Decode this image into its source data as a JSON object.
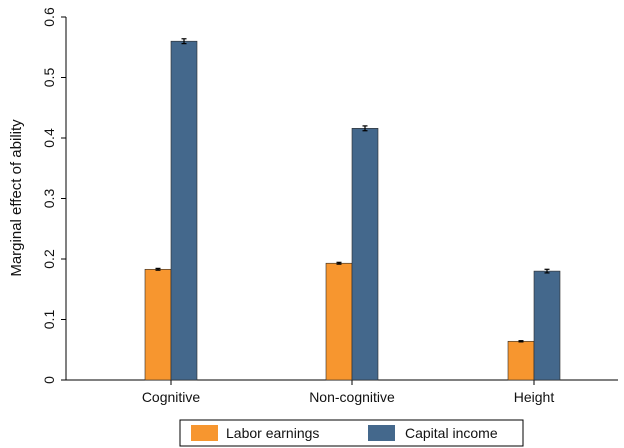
{
  "chart_data": {
    "type": "bar",
    "ylabel": "Marginal effect of ability",
    "categories": [
      "Cognitive",
      "Non-cognitive",
      "Height"
    ],
    "ylim": [
      0,
      0.6
    ],
    "yticks": [
      0,
      0.1,
      0.2,
      0.3,
      0.4,
      0.5,
      0.6
    ],
    "ytick_labels": [
      "0",
      "0.1",
      "0.2",
      "0.3",
      "0.4",
      "0.5",
      "0.6"
    ],
    "grid": false,
    "legend_position": "bottom",
    "error_bars": true,
    "series": [
      {
        "name": "Labor earnings",
        "color": "#f7962f",
        "values": [
          0.183,
          0.193,
          0.064
        ],
        "errors": [
          0.0015,
          0.0015,
          0.001
        ]
      },
      {
        "name": "Capital income",
        "color": "#44688c",
        "values": [
          0.56,
          0.416,
          0.18
        ],
        "errors": [
          0.004,
          0.004,
          0.003
        ]
      }
    ]
  }
}
